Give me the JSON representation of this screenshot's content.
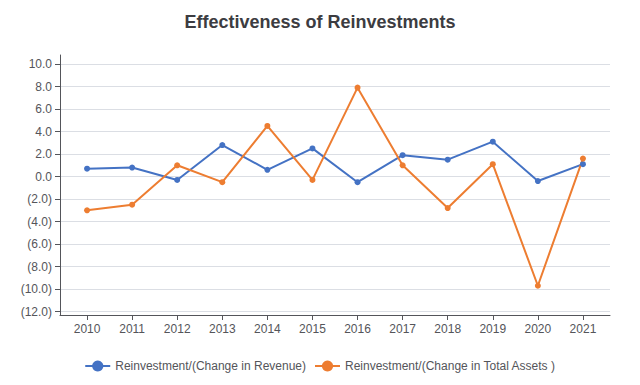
{
  "chart_data": {
    "type": "line",
    "title": "Effectiveness of Reinvestments",
    "x": [
      2010,
      2011,
      2012,
      2013,
      2014,
      2015,
      2016,
      2017,
      2018,
      2019,
      2020,
      2021
    ],
    "series": [
      {
        "name": "Reinvestment/(Change in Revenue)",
        "color": "#4472C4",
        "marker": "circle",
        "values": [
          0.7,
          0.8,
          -0.3,
          2.8,
          0.6,
          2.5,
          -0.5,
          1.9,
          1.5,
          3.1,
          -0.4,
          1.1
        ]
      },
      {
        "name": "Reinvestment/(Change in Total Assets )",
        "color": "#ED7D31",
        "marker": "circle",
        "values": [
          -3.0,
          -2.5,
          1.0,
          -0.5,
          4.5,
          -0.3,
          7.9,
          1.0,
          -2.8,
          1.1,
          -9.7,
          1.6
        ]
      }
    ],
    "xlim": [
      2009.4,
      2021.6
    ],
    "xticks": [
      2010,
      2011,
      2012,
      2013,
      2014,
      2015,
      2016,
      2017,
      2018,
      2019,
      2020,
      2021
    ],
    "ylim": [
      -12.3,
      10.8
    ],
    "yticks": [
      {
        "value": 10.0,
        "label": "10.0"
      },
      {
        "value": 8.0,
        "label": "8.0"
      },
      {
        "value": 6.0,
        "label": "6.0"
      },
      {
        "value": 4.0,
        "label": "4.0"
      },
      {
        "value": 2.0,
        "label": "2.0"
      },
      {
        "value": 0.0,
        "label": "0.0"
      },
      {
        "value": -2.0,
        "label": "(2.0)"
      },
      {
        "value": -4.0,
        "label": "(4.0)"
      },
      {
        "value": -6.0,
        "label": "(6.0)"
      },
      {
        "value": -8.0,
        "label": "(8.0)"
      },
      {
        "value": -10.0,
        "label": "(10.0)"
      },
      {
        "value": -12.0,
        "label": "(12.0)"
      }
    ],
    "grid": true,
    "legend": "bottom"
  }
}
